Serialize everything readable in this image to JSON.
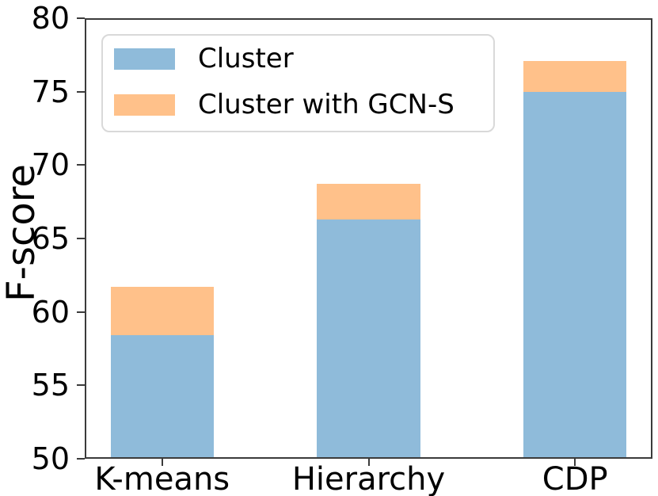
{
  "figure": {
    "background": "#ffffff",
    "spine_color": "#3b3b3b",
    "text_color": "#000000",
    "legend_border_color": "#d9d9d9"
  },
  "chart_data": {
    "type": "bar",
    "bar_style": "overlay",
    "title": "",
    "xlabel": "",
    "ylabel": "F-score",
    "categories": [
      "K-means",
      "Hierarchy",
      "CDP"
    ],
    "series": [
      {
        "name": "Cluster",
        "color": "#8fbbda",
        "values": [
          58.4,
          66.3,
          75.0
        ]
      },
      {
        "name": "Cluster with GCN-S",
        "color": "#ffc18a",
        "values": [
          61.7,
          68.7,
          77.1
        ]
      }
    ],
    "ylim": [
      50,
      80
    ],
    "yticks": [
      50,
      55,
      60,
      65,
      70,
      75,
      80
    ],
    "grid": false,
    "legend_position": "upper left"
  }
}
